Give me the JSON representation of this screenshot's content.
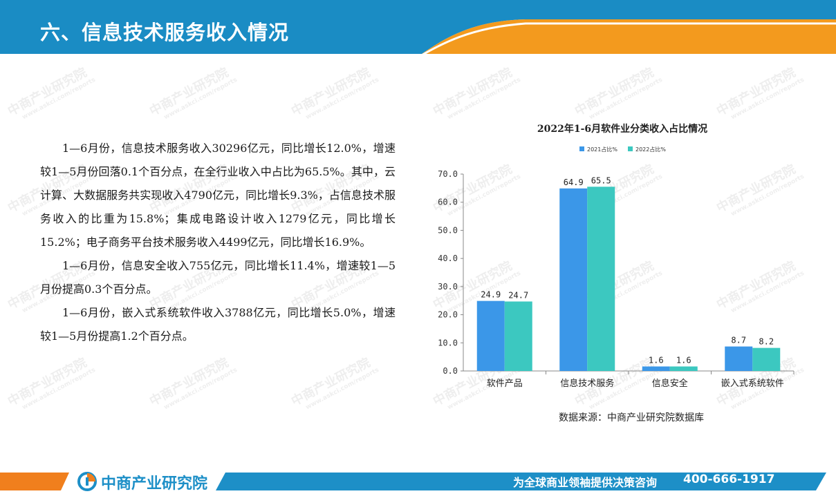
{
  "header": {
    "title": "六、信息技术服务收入情况"
  },
  "body": {
    "paragraphs": [
      "1—6月份，信息技术服务收入30296亿元，同比增长12.0%，增速较1—5月份回落0.1个百分点，在全行业收入中占比为65.5%。其中，云计算、大数据服务共实现收入4790亿元，同比增长9.3%，占信息技术服务收入的比重为15.8%；集成电路设计收入1279亿元，同比增长15.2%；电子商务平台技术服务收入4499亿元，同比增长16.9%。",
      "1—6月份，信息安全收入755亿元，同比增长11.4%，增速较1—5月份提高0.3个百分点。",
      "1—6月份，嵌入式系统软件收入3788亿元，同比增长5.0%，增速较1—5月份提高1.2个百分点。"
    ]
  },
  "chart_data": {
    "type": "bar",
    "title": "2022年1-6月软件业分类收入占比情况",
    "categories": [
      "软件产品",
      "信息技术服务",
      "信息安全",
      "嵌入式系统软件"
    ],
    "series": [
      {
        "name": "2021占比%",
        "values": [
          24.9,
          64.9,
          1.6,
          8.7
        ],
        "color": "#3b97e8"
      },
      {
        "name": "2022占比%",
        "values": [
          24.7,
          65.5,
          1.6,
          8.2
        ],
        "color": "#3cc8c0"
      }
    ],
    "yticks": [
      "0.0",
      "10.0",
      "20.0",
      "30.0",
      "40.0",
      "50.0",
      "60.0",
      "70.0"
    ],
    "ylim": [
      0,
      70
    ],
    "legend_position": "top",
    "grid": false
  },
  "source": "数据来源：中商产业研究院数据库",
  "footer": {
    "brand": "中商产业研究院",
    "slogan": "为全球商业领袖提供决策咨询",
    "phone": "400-666-1917"
  },
  "watermark": {
    "cn": "中商产业研究院",
    "en": "www.askci.com/reports"
  },
  "colors": {
    "header_blue": "#1a8cc4",
    "header_orange": "#f39a1e",
    "footer_blue": "#1d8fc7",
    "footer_orange": "#f07f1d"
  }
}
